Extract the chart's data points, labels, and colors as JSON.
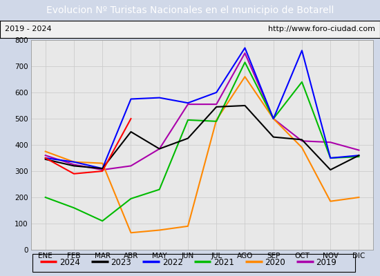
{
  "title": "Evolucion Nº Turistas Nacionales en el municipio de Botarell",
  "title_color": "#ffffff",
  "title_bg": "#4472c4",
  "subtitle_left": "2019 - 2024",
  "subtitle_right": "http://www.foro-ciudad.com",
  "months": [
    "ENE",
    "FEB",
    "MAR",
    "ABR",
    "MAY",
    "JUN",
    "JUL",
    "AGO",
    "SEP",
    "OCT",
    "NOV",
    "DIC"
  ],
  "ylim": [
    0,
    800
  ],
  "yticks": [
    0,
    100,
    200,
    300,
    400,
    500,
    600,
    700,
    800
  ],
  "series": {
    "2024": {
      "color": "#ff0000",
      "values": [
        350,
        290,
        300,
        500,
        null,
        null,
        null,
        null,
        null,
        null,
        null,
        null
      ]
    },
    "2023": {
      "color": "#000000",
      "values": [
        345,
        320,
        310,
        450,
        385,
        425,
        545,
        550,
        430,
        420,
        305,
        360
      ]
    },
    "2022": {
      "color": "#0000ff",
      "values": [
        350,
        335,
        310,
        575,
        580,
        560,
        600,
        770,
        500,
        760,
        350,
        360
      ]
    },
    "2021": {
      "color": "#00bb00",
      "values": [
        200,
        160,
        110,
        195,
        230,
        495,
        490,
        715,
        500,
        640,
        350,
        355
      ]
    },
    "2020": {
      "color": "#ff8800",
      "values": [
        375,
        335,
        330,
        65,
        75,
        90,
        495,
        660,
        500,
        390,
        185,
        200
      ]
    },
    "2019": {
      "color": "#aa00aa",
      "values": [
        360,
        325,
        305,
        320,
        385,
        555,
        555,
        750,
        500,
        415,
        410,
        380
      ]
    }
  },
  "legend_order": [
    "2024",
    "2023",
    "2022",
    "2021",
    "2020",
    "2019"
  ],
  "plot_bg": "#e8e8e8",
  "grid_color": "#cccccc",
  "fig_bg": "#f0f0f0",
  "outer_bg": "#d0d8e8",
  "border_color": "#000000",
  "title_fontsize": 10,
  "tick_fontsize": 7.5,
  "legend_fontsize": 8.5,
  "subtitle_fontsize": 8,
  "line_width": 1.5
}
